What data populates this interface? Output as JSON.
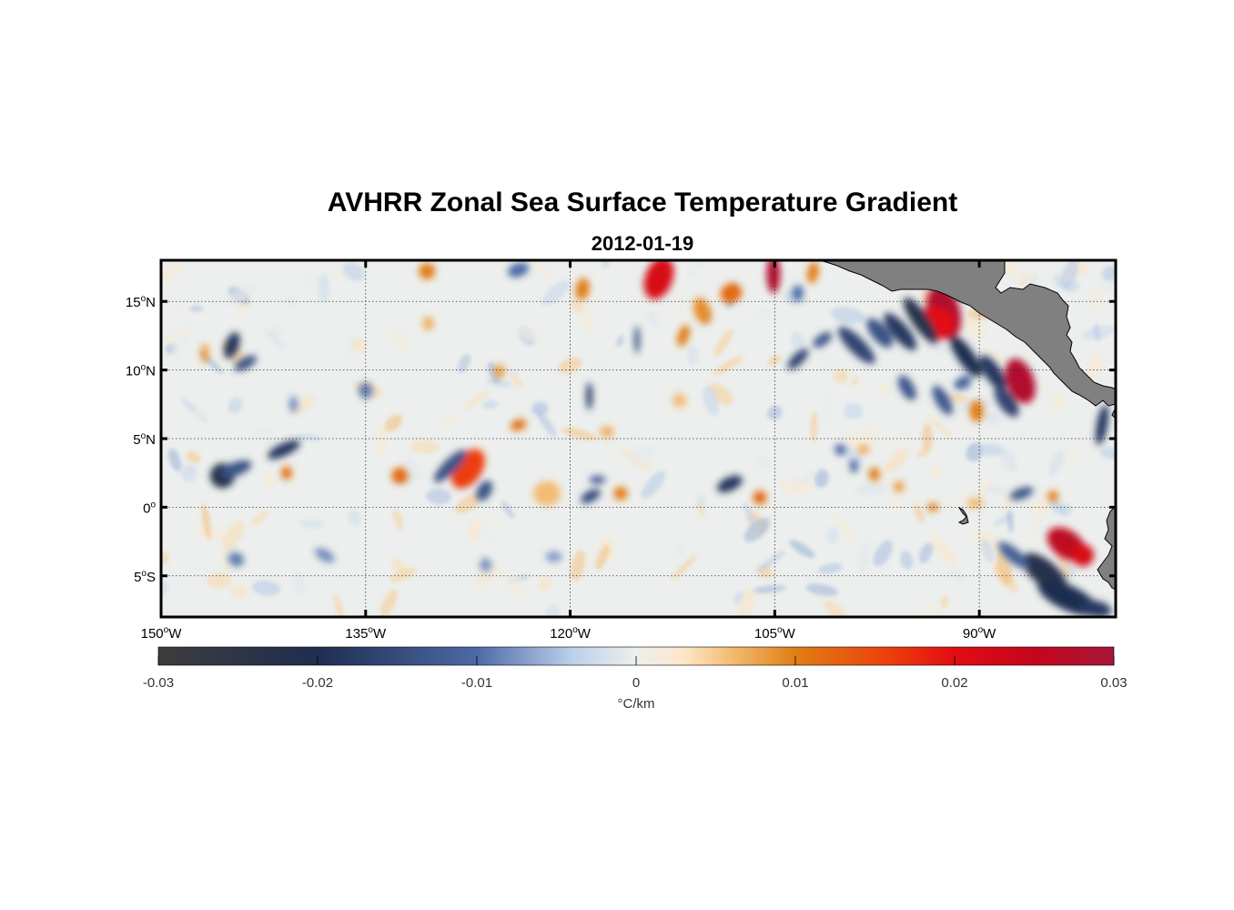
{
  "figure": {
    "title": "AVHRR Zonal Sea Surface Temperature Gradient",
    "subtitle": "2012-01-19"
  },
  "map": {
    "lon_range": [
      -150,
      -80
    ],
    "lat_range": [
      -8,
      18
    ],
    "lon_ticks": [
      {
        "value": -150,
        "num": "150",
        "hemi": "W"
      },
      {
        "value": -135,
        "num": "135",
        "hemi": "W"
      },
      {
        "value": -120,
        "num": "120",
        "hemi": "W"
      },
      {
        "value": -105,
        "num": "105",
        "hemi": "W"
      },
      {
        "value": -90,
        "num": "90",
        "hemi": "W"
      }
    ],
    "lat_ticks": [
      {
        "value": 15,
        "num": "15",
        "hemi": "N"
      },
      {
        "value": 10,
        "num": "10",
        "hemi": "N"
      },
      {
        "value": 5,
        "num": "5",
        "hemi": "N"
      },
      {
        "value": 0,
        "num": "0",
        "hemi": ""
      },
      {
        "value": -5,
        "num": "5",
        "hemi": "S"
      }
    ],
    "grid": true,
    "land_color": "#808080",
    "features": [
      {
        "lon": -113.5,
        "lat": 16.7,
        "value": 0.022,
        "rlon": 1.0,
        "rlat": 1.6,
        "angle": 20
      },
      {
        "lon": -105.1,
        "lat": 17.0,
        "value": 0.028,
        "rlon": 0.5,
        "rlat": 1.4,
        "angle": 0
      },
      {
        "lon": -102.2,
        "lat": 17.1,
        "value": 0.01,
        "rlon": 0.4,
        "rlat": 0.8,
        "angle": 10
      },
      {
        "lon": -108.2,
        "lat": 15.6,
        "value": 0.012,
        "rlon": 0.8,
        "rlat": 0.7,
        "angle": -30
      },
      {
        "lon": -110.3,
        "lat": 14.3,
        "value": 0.009,
        "rlon": 0.6,
        "rlat": 1.0,
        "angle": -20
      },
      {
        "lon": -119.1,
        "lat": 15.9,
        "value": 0.01,
        "rlon": 0.5,
        "rlat": 0.8,
        "angle": 10
      },
      {
        "lon": -130.5,
        "lat": 17.2,
        "value": 0.01,
        "rlon": 0.6,
        "rlat": 0.6,
        "angle": 0
      },
      {
        "lon": -123.8,
        "lat": 17.3,
        "value": -0.01,
        "rlon": 0.8,
        "rlat": 0.5,
        "angle": -20
      },
      {
        "lon": -92.6,
        "lat": 14.2,
        "value": 0.028,
        "rlon": 1.2,
        "rlat": 2.0,
        "angle": -15
      },
      {
        "lon": -93.2,
        "lat": 13.4,
        "value": 0.02,
        "rlon": 1.4,
        "rlat": 1.2,
        "angle": 0
      },
      {
        "lon": -87.0,
        "lat": 9.2,
        "value": 0.028,
        "rlon": 1.0,
        "rlat": 1.7,
        "angle": -20
      },
      {
        "lon": -94.3,
        "lat": 13.6,
        "value": -0.022,
        "rlon": 0.6,
        "rlat": 2.0,
        "angle": -35
      },
      {
        "lon": -95.8,
        "lat": 12.8,
        "value": -0.018,
        "rlon": 0.6,
        "rlat": 1.7,
        "angle": -40
      },
      {
        "lon": -99.0,
        "lat": 11.8,
        "value": -0.016,
        "rlon": 0.6,
        "rlat": 1.8,
        "angle": -45
      },
      {
        "lon": -97.3,
        "lat": 12.7,
        "value": -0.014,
        "rlon": 0.6,
        "rlat": 1.3,
        "angle": -40
      },
      {
        "lon": -91.0,
        "lat": 11.0,
        "value": -0.02,
        "rlon": 0.6,
        "rlat": 1.8,
        "angle": -35
      },
      {
        "lon": -89.0,
        "lat": 9.8,
        "value": -0.018,
        "rlon": 0.6,
        "rlat": 1.5,
        "angle": -35
      },
      {
        "lon": -88.0,
        "lat": 7.7,
        "value": -0.016,
        "rlon": 0.6,
        "rlat": 1.3,
        "angle": -35
      },
      {
        "lon": -92.7,
        "lat": 7.8,
        "value": -0.013,
        "rlon": 0.5,
        "rlat": 1.2,
        "angle": -30
      },
      {
        "lon": -95.3,
        "lat": 8.7,
        "value": -0.013,
        "rlon": 0.5,
        "rlat": 1.0,
        "angle": -30
      },
      {
        "lon": -90.2,
        "lat": 7.0,
        "value": 0.01,
        "rlon": 0.5,
        "rlat": 0.8,
        "angle": 0
      },
      {
        "lon": -81.0,
        "lat": 6.0,
        "value": -0.018,
        "rlon": 0.4,
        "rlat": 1.5,
        "angle": 10
      },
      {
        "lon": -83.6,
        "lat": -2.7,
        "value": 0.026,
        "rlon": 1.6,
        "rlat": 1.0,
        "angle": 35
      },
      {
        "lon": -82.4,
        "lat": -3.5,
        "value": 0.022,
        "rlon": 0.8,
        "rlat": 0.8,
        "angle": 0
      },
      {
        "lon": -85.2,
        "lat": -4.8,
        "value": -0.022,
        "rlon": 2.0,
        "rlat": 0.9,
        "angle": 40
      },
      {
        "lon": -83.5,
        "lat": -6.6,
        "value": -0.02,
        "rlon": 2.4,
        "rlat": 0.9,
        "angle": 25
      },
      {
        "lon": -87.5,
        "lat": -3.5,
        "value": -0.012,
        "rlon": 1.4,
        "rlat": 0.5,
        "angle": 40
      },
      {
        "lon": -81.5,
        "lat": -7.4,
        "value": -0.018,
        "rlon": 1.2,
        "rlat": 0.6,
        "angle": 10
      },
      {
        "lon": -145.5,
        "lat": 2.3,
        "value": -0.022,
        "rlon": 0.9,
        "rlat": 0.9,
        "angle": 0
      },
      {
        "lon": -144.5,
        "lat": 2.8,
        "value": -0.014,
        "rlon": 1.2,
        "rlat": 0.5,
        "angle": -20
      },
      {
        "lon": -141.0,
        "lat": 4.2,
        "value": -0.018,
        "rlon": 1.3,
        "rlat": 0.45,
        "angle": -25
      },
      {
        "lon": -144.8,
        "lat": 11.8,
        "value": -0.018,
        "rlon": 0.5,
        "rlat": 1.0,
        "angle": 20
      },
      {
        "lon": -143.8,
        "lat": 10.5,
        "value": -0.014,
        "rlon": 0.9,
        "rlat": 0.4,
        "angle": -30
      },
      {
        "lon": -140.8,
        "lat": 2.5,
        "value": 0.011,
        "rlon": 0.4,
        "rlat": 0.5,
        "angle": 0
      },
      {
        "lon": -132.5,
        "lat": 2.3,
        "value": 0.012,
        "rlon": 0.6,
        "rlat": 0.6,
        "angle": 0
      },
      {
        "lon": -146.8,
        "lat": 11.2,
        "value": 0.008,
        "rlon": 0.3,
        "rlat": 0.7,
        "angle": 0
      },
      {
        "lon": -127.5,
        "lat": 2.8,
        "value": 0.016,
        "rlon": 1.0,
        "rlat": 1.6,
        "angle": 35
      },
      {
        "lon": -128.8,
        "lat": 3.0,
        "value": -0.014,
        "rlon": 0.5,
        "rlat": 1.6,
        "angle": 45
      },
      {
        "lon": -126.3,
        "lat": 1.2,
        "value": -0.014,
        "rlon": 0.5,
        "rlat": 0.8,
        "angle": 30
      },
      {
        "lon": -123.8,
        "lat": 6.0,
        "value": 0.011,
        "rlon": 0.6,
        "rlat": 0.4,
        "angle": -20
      },
      {
        "lon": -121.7,
        "lat": 1.0,
        "value": 0.006,
        "rlon": 1.0,
        "rlat": 0.9,
        "angle": 0
      },
      {
        "lon": -118.5,
        "lat": 0.8,
        "value": -0.015,
        "rlon": 0.8,
        "rlat": 0.4,
        "angle": -30
      },
      {
        "lon": -118.0,
        "lat": 2.0,
        "value": -0.012,
        "rlon": 0.6,
        "rlat": 0.3,
        "angle": 0
      },
      {
        "lon": -116.3,
        "lat": 1.0,
        "value": 0.01,
        "rlon": 0.5,
        "rlat": 0.5,
        "angle": 0
      },
      {
        "lon": -118.6,
        "lat": 8.1,
        "value": -0.016,
        "rlon": 0.25,
        "rlat": 1.0,
        "angle": 0
      },
      {
        "lon": -115.1,
        "lat": 12.2,
        "value": -0.014,
        "rlon": 0.2,
        "rlat": 1.0,
        "angle": 0
      },
      {
        "lon": -111.7,
        "lat": 12.5,
        "value": 0.01,
        "rlon": 0.4,
        "rlat": 0.8,
        "angle": 20
      },
      {
        "lon": -106.1,
        "lat": 0.7,
        "value": 0.012,
        "rlon": 0.5,
        "rlat": 0.5,
        "angle": 0
      },
      {
        "lon": -108.3,
        "lat": 1.7,
        "value": -0.018,
        "rlon": 1.0,
        "rlat": 0.5,
        "angle": -25
      },
      {
        "lon": -103.3,
        "lat": 10.8,
        "value": -0.016,
        "rlon": 1.0,
        "rlat": 0.4,
        "angle": -45
      },
      {
        "lon": -101.5,
        "lat": 12.2,
        "value": -0.013,
        "rlon": 0.8,
        "rlat": 0.4,
        "angle": -35
      },
      {
        "lon": -97.7,
        "lat": 2.4,
        "value": 0.01,
        "rlon": 0.4,
        "rlat": 0.5,
        "angle": 0
      },
      {
        "lon": -95.9,
        "lat": 1.5,
        "value": 0.008,
        "rlon": 0.4,
        "rlat": 0.4,
        "angle": 0
      },
      {
        "lon": -90.3,
        "lat": 0.3,
        "value": 0.006,
        "rlon": 0.6,
        "rlat": 0.4,
        "angle": 0
      },
      {
        "lon": -93.4,
        "lat": 0.0,
        "value": 0.01,
        "rlon": 0.4,
        "rlat": 0.3,
        "angle": 0
      },
      {
        "lon": -91.2,
        "lat": 9.1,
        "value": -0.012,
        "rlon": 0.7,
        "rlat": 0.4,
        "angle": -30
      },
      {
        "lon": -100.2,
        "lat": 4.2,
        "value": -0.011,
        "rlon": 0.4,
        "rlat": 0.4,
        "angle": 0
      },
      {
        "lon": -99.2,
        "lat": 3.0,
        "value": -0.011,
        "rlon": 0.3,
        "rlat": 0.5,
        "angle": 0
      },
      {
        "lon": -84.6,
        "lat": 0.8,
        "value": 0.01,
        "rlon": 0.4,
        "rlat": 0.4,
        "angle": 0
      },
      {
        "lon": -86.9,
        "lat": 1.0,
        "value": -0.013,
        "rlon": 0.9,
        "rlat": 0.4,
        "angle": -20
      },
      {
        "lon": -103.3,
        "lat": 15.6,
        "value": -0.01,
        "rlon": 0.4,
        "rlat": 0.6,
        "angle": 0
      },
      {
        "lon": -135.0,
        "lat": 8.5,
        "value": -0.009,
        "rlon": 0.5,
        "rlat": 0.6,
        "angle": 0
      },
      {
        "lon": -125.2,
        "lat": 9.9,
        "value": 0.008,
        "rlon": 0.4,
        "rlat": 0.5,
        "angle": 0
      },
      {
        "lon": -130.4,
        "lat": 13.4,
        "value": 0.007,
        "rlon": 0.4,
        "rlat": 0.5,
        "angle": 0
      },
      {
        "lon": -140.3,
        "lat": 7.5,
        "value": -0.008,
        "rlon": 0.3,
        "rlat": 0.6,
        "angle": 0
      },
      {
        "lon": -138.0,
        "lat": -3.5,
        "value": -0.008,
        "rlon": 0.8,
        "rlat": 0.4,
        "angle": 30
      },
      {
        "lon": -144.5,
        "lat": -3.8,
        "value": -0.009,
        "rlon": 0.6,
        "rlat": 0.5,
        "angle": 30
      },
      {
        "lon": -126.2,
        "lat": -4.2,
        "value": -0.008,
        "rlon": 0.4,
        "rlat": 0.5,
        "angle": 0
      },
      {
        "lon": -121.2,
        "lat": -3.6,
        "value": -0.007,
        "rlon": 0.6,
        "rlat": 0.4,
        "angle": 0
      },
      {
        "lon": -117.3,
        "lat": 5.5,
        "value": 0.007,
        "rlon": 0.5,
        "rlat": 0.4,
        "angle": 0
      },
      {
        "lon": -98.5,
        "lat": 4.2,
        "value": 0.008,
        "rlon": 0.4,
        "rlat": 0.3,
        "angle": 0
      },
      {
        "lon": -112.0,
        "lat": 7.8,
        "value": 0.006,
        "rlon": 0.5,
        "rlat": 0.5,
        "angle": 0
      }
    ],
    "land": [
      {
        "name": "central-america"
      },
      {
        "name": "south-america"
      },
      {
        "name": "galapagos-islands"
      }
    ]
  },
  "colorbar": {
    "min": -0.03,
    "max": 0.03,
    "tick_labels": [
      "-0.03",
      "-0.02",
      "-0.01",
      "0",
      "0.01",
      "0.02",
      "0.03"
    ],
    "tick_values": [
      -0.03,
      -0.02,
      -0.01,
      0,
      0.01,
      0.02,
      0.03
    ],
    "unit_label": "°C/km",
    "color_stops": [
      {
        "v": -0.03,
        "c": "#3d3d3d"
      },
      {
        "v": -0.02,
        "c": "#1f2d50"
      },
      {
        "v": -0.01,
        "c": "#4d6aa6"
      },
      {
        "v": -0.004,
        "c": "#bcd0ea"
      },
      {
        "v": 0,
        "c": "#ecefed"
      },
      {
        "v": 0.003,
        "c": "#fde7c8"
      },
      {
        "v": 0.006,
        "c": "#f3bb73"
      },
      {
        "v": 0.01,
        "c": "#e07e14"
      },
      {
        "v": 0.016,
        "c": "#ec3e0c"
      },
      {
        "v": 0.02,
        "c": "#e30c14"
      },
      {
        "v": 0.025,
        "c": "#c4061c"
      },
      {
        "v": 0.03,
        "c": "#a6163a"
      }
    ]
  }
}
